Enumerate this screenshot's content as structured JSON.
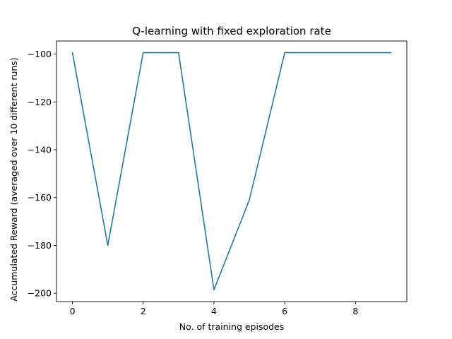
{
  "chart_data": {
    "type": "line",
    "title": "Q-learning with fixed exploration rate",
    "xlabel": "No. of training episodes",
    "ylabel": "Accumulated Reward (averaged over 10 different runs)",
    "x": [
      0,
      1,
      2,
      3,
      4,
      5,
      6,
      7,
      8,
      9
    ],
    "series": [
      {
        "values": [
          -99.4,
          -180.0,
          -99.4,
          -99.4,
          -198.6,
          -161.0,
          -99.4,
          -99.4,
          -99.4,
          -99.4
        ],
        "color": "#1f77b4"
      }
    ],
    "xlim": [
      -0.45,
      9.45
    ],
    "ylim": [
      -203.5,
      -94.5
    ],
    "xticks": [
      0,
      2,
      4,
      6,
      8
    ],
    "yticks": [
      -200,
      -180,
      -160,
      -140,
      -120,
      -100
    ],
    "grid": false
  }
}
